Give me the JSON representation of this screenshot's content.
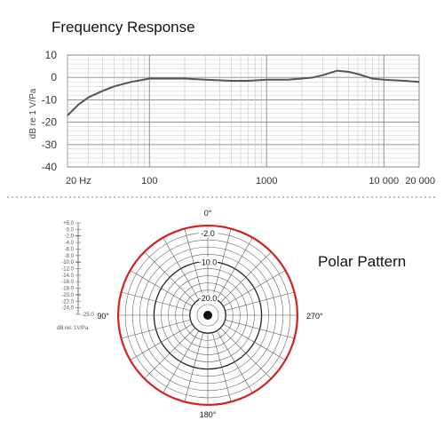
{
  "chart_data": [
    {
      "type": "line",
      "title": "Frequency Response",
      "ylabel": "dB re 1 V/Pa",
      "xscale": "log",
      "xlim": [
        20,
        20000
      ],
      "ylim": [
        -40,
        10
      ],
      "yticks": [
        "10",
        "0",
        "-10",
        "-20",
        "-30",
        "-40"
      ],
      "xticks": [
        {
          "value": 20,
          "label": "20 Hz"
        },
        {
          "value": 100,
          "label": "100"
        },
        {
          "value": 1000,
          "label": "1000"
        },
        {
          "value": 10000,
          "label": "10 000"
        },
        {
          "value": 20000,
          "label": "20 000"
        }
      ],
      "grid": true,
      "x": [
        20,
        25,
        30,
        40,
        50,
        70,
        100,
        150,
        200,
        300,
        500,
        700,
        1000,
        1500,
        2000,
        2500,
        3000,
        4000,
        5000,
        6000,
        8000,
        10000,
        15000,
        20000
      ],
      "y": [
        -17,
        -12,
        -9,
        -6,
        -4,
        -2,
        -0.5,
        -0.5,
        -0.5,
        -1,
        -1.5,
        -1.5,
        -1,
        -1,
        -0.5,
        0,
        1,
        3,
        2.5,
        1.5,
        -0.5,
        -1,
        -1.5,
        -2
      ]
    },
    {
      "type": "polar",
      "title": "Polar Pattern",
      "scale_label": "dB rel. 1V/Pa",
      "scale_ticks": [
        "+5.0",
        "0.0",
        "-2.0",
        "-4.0",
        "-6.0",
        "-8.0",
        "-10.0",
        "-12.0",
        "-14.0",
        "-16.0",
        "-18.0",
        "-20.0",
        "-22.0",
        "-24.0",
        "-25.0"
      ],
      "ring_labels": [
        "-2.0",
        "-10.0",
        "-20.0"
      ],
      "angle_labels": [
        "0°",
        "90°",
        "180°",
        "270°"
      ],
      "pattern": "omnidirectional",
      "pattern_level_db": -2,
      "pattern_color": "#d42020"
    }
  ]
}
